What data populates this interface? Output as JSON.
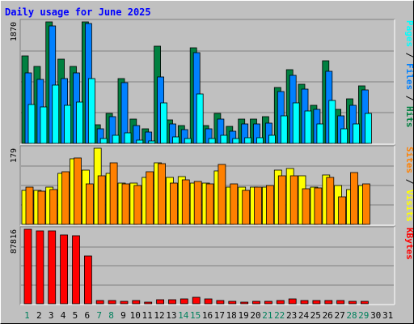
{
  "chart_data": {
    "type": "bar",
    "title": "Daily usage for June 2025",
    "days": [
      "1",
      "2",
      "3",
      "4",
      "5",
      "6",
      "7",
      "8",
      "9",
      "10",
      "11",
      "12",
      "13",
      "14",
      "15",
      "16",
      "17",
      "18",
      "19",
      "20",
      "21",
      "22",
      "23",
      "24",
      "25",
      "26",
      "27",
      "28",
      "29",
      "30",
      "31"
    ],
    "weekend_days": [
      "1",
      "7",
      "8",
      "14",
      "15",
      "21",
      "22",
      "28",
      "29"
    ],
    "panels": [
      {
        "id": "hits",
        "ymax": 1870,
        "ymax_label": "1870",
        "axis_label_parts": [
          "Pages",
          " / ",
          "Files",
          " / ",
          "Hits"
        ],
        "series": [
          {
            "name": "Hits",
            "color": "#008040",
            "values": [
              1345,
              1180,
              1870,
              1300,
              1190,
              1870,
              290,
              460,
              1000,
              370,
              230,
              1490,
              360,
              270,
              1470,
              280,
              460,
              260,
              370,
              370,
              410,
              860,
              1140,
              910,
              580,
              1270,
              520,
              690,
              880,
              0,
              0
            ]
          },
          {
            "name": "Files",
            "color": "#0080ff",
            "values": [
              1080,
              980,
              1810,
              1000,
              1090,
              1840,
              230,
              410,
              930,
              280,
              170,
              1020,
              300,
              210,
              1400,
              230,
              380,
              190,
              300,
              300,
              310,
              800,
              1050,
              840,
              520,
              1110,
              430,
              590,
              820,
              0,
              0
            ]
          },
          {
            "name": "Pages",
            "color": "#00ffff",
            "values": [
              600,
              560,
              900,
              580,
              640,
              1000,
              80,
              120,
              160,
              50,
              40,
              620,
              100,
              80,
              760,
              80,
              120,
              70,
              90,
              90,
              120,
              420,
              620,
              500,
              300,
              660,
              230,
              300,
              460,
              0,
              0
            ]
          }
        ]
      },
      {
        "id": "visits",
        "ymax": 179,
        "ymax_label": "179",
        "axis_label_parts": [
          "Sites",
          " / ",
          "Visits"
        ],
        "series": [
          {
            "name": "Visits",
            "color": "#ffff00",
            "values": [
              80,
              80,
              88,
              120,
              155,
              128,
              179,
              120,
              97,
              97,
              110,
              145,
              110,
              112,
              97,
              97,
              125,
              88,
              88,
              87,
              88,
              128,
              132,
              115,
              88,
              117,
              92,
              82,
              92,
              0,
              0
            ]
          },
          {
            "name": "Sites",
            "color": "#ff8000",
            "values": [
              88,
              78,
              82,
              123,
              157,
              95,
              115,
              145,
              95,
              92,
              123,
              142,
              97,
              105,
              100,
              95,
              140,
              95,
              80,
              88,
              92,
              115,
              115,
              83,
              85,
              110,
              65,
              122,
              95,
              0,
              0
            ]
          }
        ]
      },
      {
        "id": "kbytes",
        "ymax": 87816,
        "ymax_label": "87816",
        "axis_label_parts": [
          "KBytes"
        ],
        "series": [
          {
            "name": "KBytes",
            "color": "#ff0000",
            "values": [
              87816,
              86000,
              86100,
              81000,
              80000,
              56000,
              3700,
              3600,
              3000,
              3600,
              2000,
              4500,
              4800,
              5600,
              7600,
              5800,
              3900,
              3300,
              2200,
              2400,
              2400,
              3900,
              5300,
              4200,
              3800,
              4200,
              3500,
              3300,
              2900,
              0,
              0
            ]
          }
        ]
      }
    ],
    "colors": {
      "title": "#0000ff",
      "weekday_label": "#000000",
      "weekend_label": "#00805c",
      "grid": "#808080",
      "plot_bg": "#c0c0c0"
    }
  }
}
